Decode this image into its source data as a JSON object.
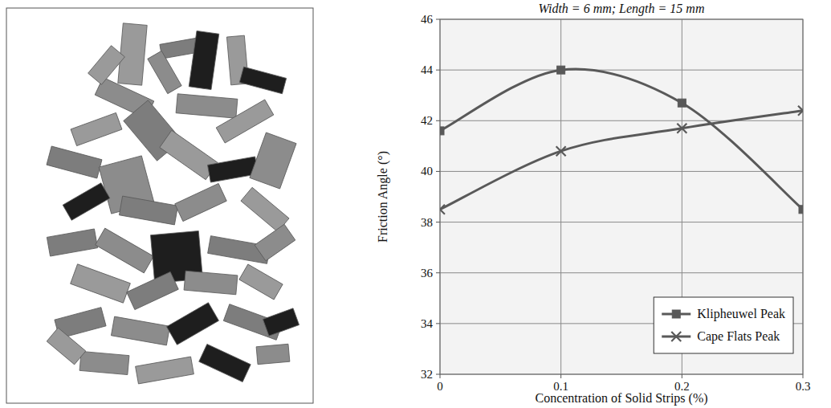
{
  "chart_data": {
    "type": "line",
    "title": "Width = 6 mm; Length = 15 mm",
    "x_label": "Concentration of Solid Strips (%)",
    "y_label": "Friction Angle (°)",
    "x": [
      0,
      0.1,
      0.2,
      0.3
    ],
    "series": [
      {
        "name": "Klipheuwel Peak",
        "color": "#595959",
        "marker": "square",
        "line_style": "smooth",
        "values": [
          41.6,
          44.0,
          42.7,
          38.5
        ]
      },
      {
        "name": "Cape Flats Peak",
        "color": "#595959",
        "marker": "x",
        "line_style": "smooth",
        "values": [
          38.5,
          40.8,
          41.7,
          42.4
        ]
      }
    ],
    "xlim": [
      0,
      0.3
    ],
    "xticks": [
      0,
      0.1,
      0.2,
      0.3
    ],
    "ylim": [
      32,
      46
    ],
    "yticks": [
      32,
      34,
      36,
      38,
      40,
      42,
      44,
      46
    ],
    "grid": true,
    "legend": "lower right"
  }
}
